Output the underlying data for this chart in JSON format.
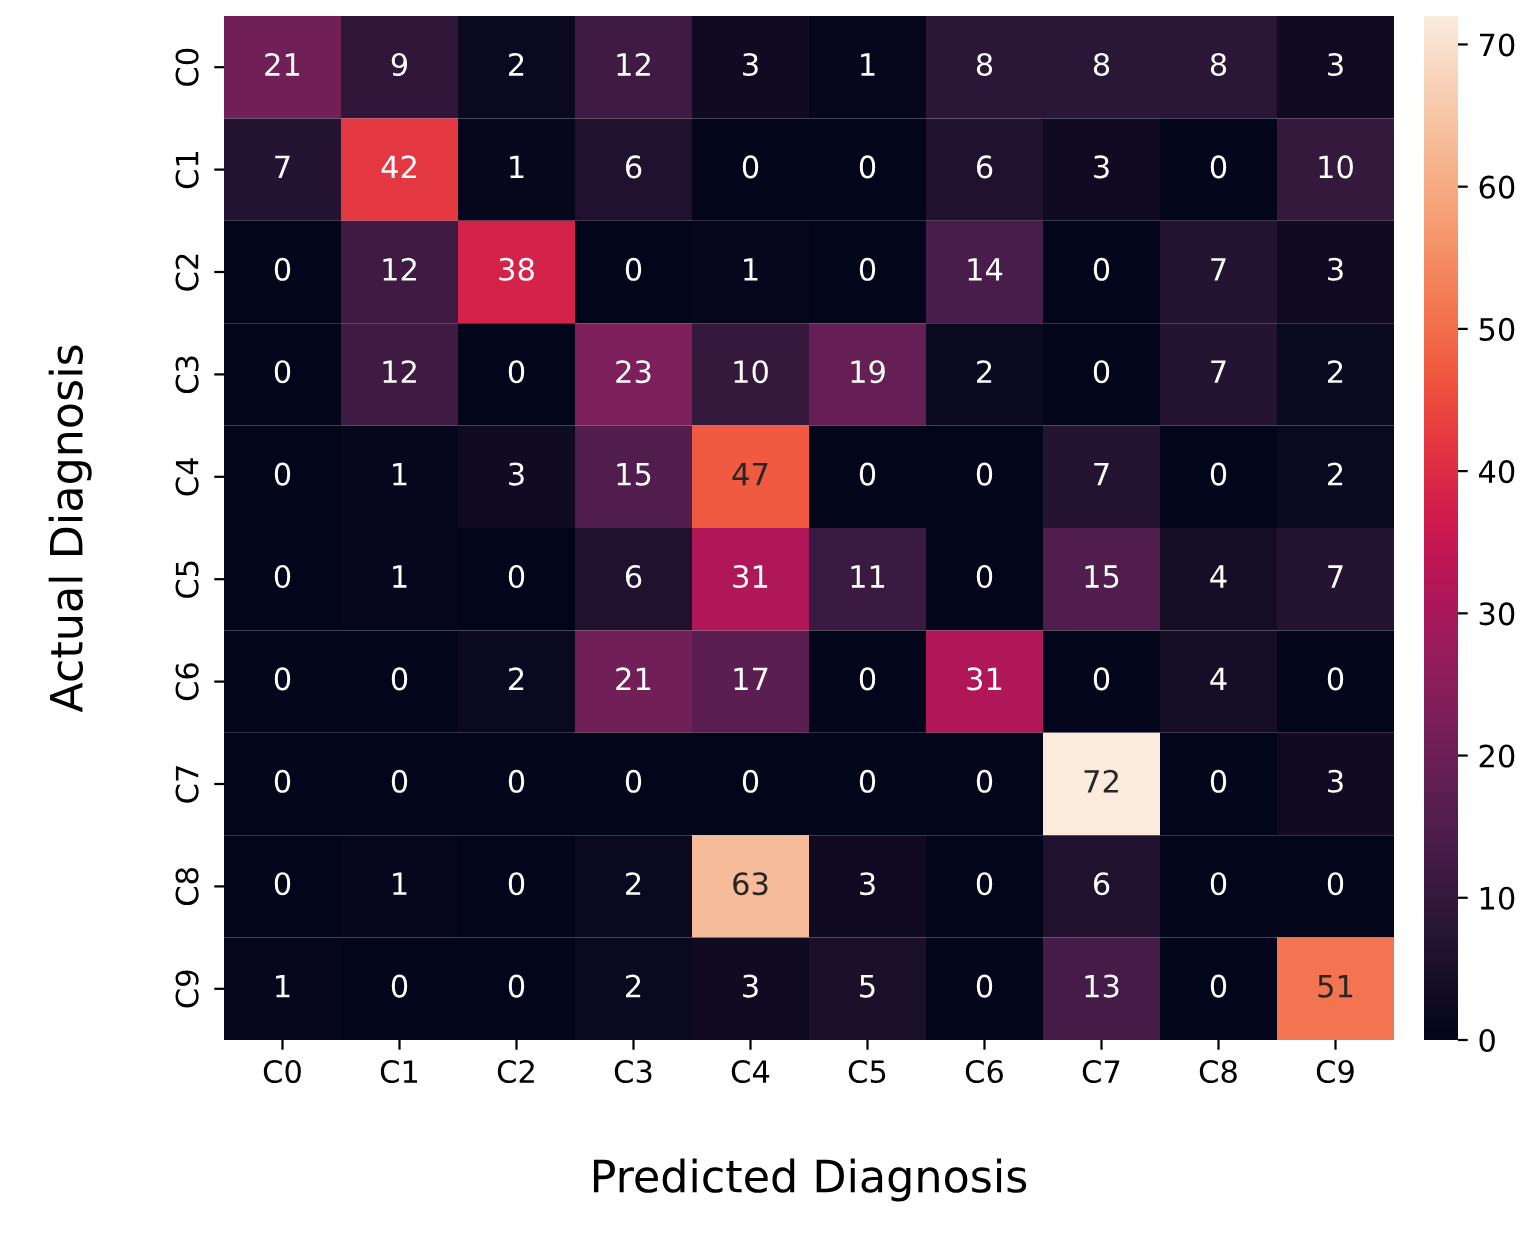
{
  "chart_data": {
    "type": "heatmap",
    "xlabel": "Predicted Diagnosis",
    "ylabel": "Actual Diagnosis",
    "categories": [
      "C0",
      "C1",
      "C2",
      "C3",
      "C4",
      "C5",
      "C6",
      "C7",
      "C8",
      "C9"
    ],
    "y_categories": [
      "C0",
      "C1",
      "C2",
      "C3",
      "C4",
      "C5",
      "C6",
      "C7",
      "C8",
      "C9"
    ],
    "cells": [
      [
        21,
        9,
        2,
        12,
        3,
        1,
        8,
        8,
        8,
        3
      ],
      [
        7,
        42,
        1,
        6,
        0,
        0,
        6,
        3,
        0,
        10
      ],
      [
        0,
        12,
        38,
        0,
        1,
        0,
        14,
        0,
        7,
        3
      ],
      [
        0,
        12,
        0,
        23,
        10,
        19,
        2,
        0,
        7,
        2
      ],
      [
        0,
        1,
        3,
        15,
        47,
        0,
        0,
        7,
        0,
        2
      ],
      [
        0,
        1,
        0,
        6,
        31,
        11,
        0,
        15,
        4,
        7
      ],
      [
        0,
        0,
        2,
        21,
        17,
        0,
        31,
        0,
        4,
        0
      ],
      [
        0,
        0,
        0,
        0,
        0,
        0,
        0,
        72,
        0,
        3
      ],
      [
        0,
        1,
        0,
        2,
        63,
        3,
        0,
        6,
        0,
        0
      ],
      [
        1,
        0,
        0,
        2,
        3,
        5,
        0,
        13,
        0,
        51
      ]
    ],
    "clim": [
      0,
      72
    ],
    "cticks": [
      0,
      10,
      20,
      30,
      40,
      50,
      60,
      70
    ],
    "data_labels": true
  }
}
